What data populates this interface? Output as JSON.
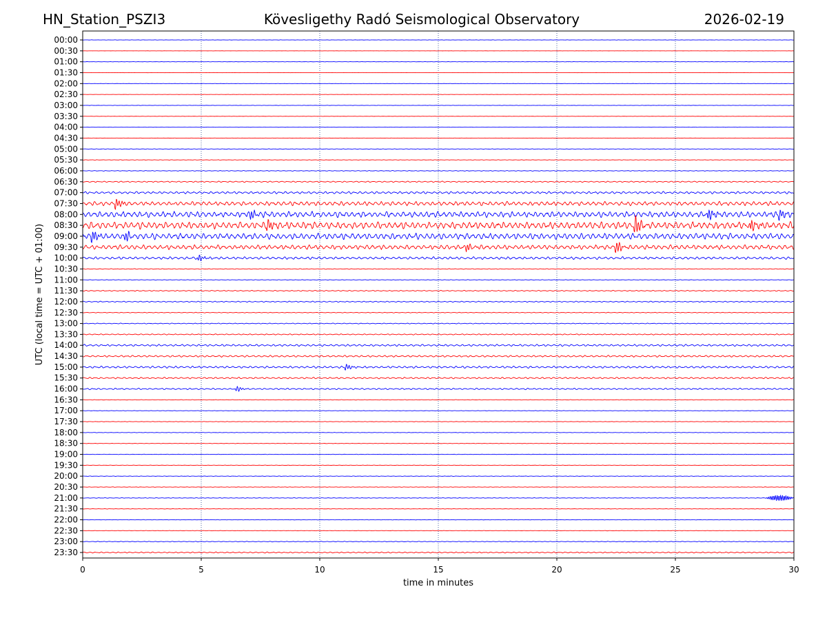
{
  "header": {
    "station": "HN_Station_PSZI3",
    "observatory": "Kövesligethy Radó Seismological Observatory",
    "date": "2026-02-19"
  },
  "chart_data": {
    "type": "line",
    "title": "Kövesligethy Radó Seismological Observatory",
    "xlabel": "time in minutes",
    "ylabel": "UTC (local time = UTC + 01:00)",
    "xlim": [
      0,
      30
    ],
    "x_ticks": [
      0,
      5,
      10,
      15,
      20,
      25,
      30
    ],
    "grid": "vertical dotted lines at 5-minute intervals",
    "colors": {
      "even_rows": "#0000ff",
      "odd_rows": "#ff0000",
      "grid": "#1f3a8a"
    },
    "rows": [
      "00:00",
      "00:30",
      "01:00",
      "01:30",
      "02:00",
      "02:30",
      "03:00",
      "03:30",
      "04:00",
      "04:30",
      "05:00",
      "05:30",
      "06:00",
      "06:30",
      "07:00",
      "07:30",
      "08:00",
      "08:30",
      "09:00",
      "09:30",
      "10:00",
      "10:30",
      "11:00",
      "11:30",
      "12:00",
      "12:30",
      "13:00",
      "13:30",
      "14:00",
      "14:30",
      "15:00",
      "15:30",
      "16:00",
      "16:30",
      "17:00",
      "17:30",
      "18:00",
      "18:30",
      "19:00",
      "19:30",
      "20:00",
      "20:30",
      "21:00",
      "21:30",
      "22:00",
      "22:30",
      "23:00",
      "23:30"
    ],
    "activity_level": [
      0.2,
      0.1,
      0.2,
      0.15,
      0.15,
      0.15,
      0.2,
      0.15,
      0.15,
      0.2,
      0.35,
      0.3,
      0.45,
      0.9,
      1.8,
      3.2,
      4.5,
      5.5,
      4.8,
      3.5,
      2.0,
      0.5,
      0.4,
      0.7,
      0.8,
      0.5,
      0.6,
      0.8,
      1.5,
      1.4,
      1.6,
      1.2,
      1.1,
      0.35,
      0.3,
      0.3,
      0.3,
      0.3,
      0.3,
      0.3,
      0.3,
      0.3,
      0.4,
      0.3,
      0.3,
      0.3,
      0.5,
      0.9
    ],
    "events": [
      {
        "row": "07:30",
        "minute": 1.4,
        "amplitude": 8
      },
      {
        "row": "08:00",
        "minute": 7.1,
        "amplitude": 7
      },
      {
        "row": "08:00",
        "minute": 26.4,
        "amplitude": 9
      },
      {
        "row": "08:00",
        "minute": 29.4,
        "amplitude": 8
      },
      {
        "row": "08:30",
        "minute": 7.8,
        "amplitude": 9
      },
      {
        "row": "08:30",
        "minute": 23.3,
        "amplitude": 14
      },
      {
        "row": "08:30",
        "minute": 28.2,
        "amplitude": 9
      },
      {
        "row": "09:00",
        "minute": 0.4,
        "amplitude": 9
      },
      {
        "row": "09:00",
        "minute": 1.8,
        "amplitude": 7
      },
      {
        "row": "09:30",
        "minute": 22.5,
        "amplitude": 9
      },
      {
        "row": "09:30",
        "minute": 16.2,
        "amplitude": 6
      },
      {
        "row": "10:00",
        "minute": 4.9,
        "amplitude": 5
      },
      {
        "row": "15:00",
        "minute": 11.1,
        "amplitude": 5
      },
      {
        "row": "16:00",
        "minute": 6.5,
        "amplitude": 4
      }
    ],
    "bursts": [
      {
        "row": "21:00",
        "start_minute": 28.8,
        "end_minute": 30.0,
        "amplitude": 4
      }
    ]
  }
}
